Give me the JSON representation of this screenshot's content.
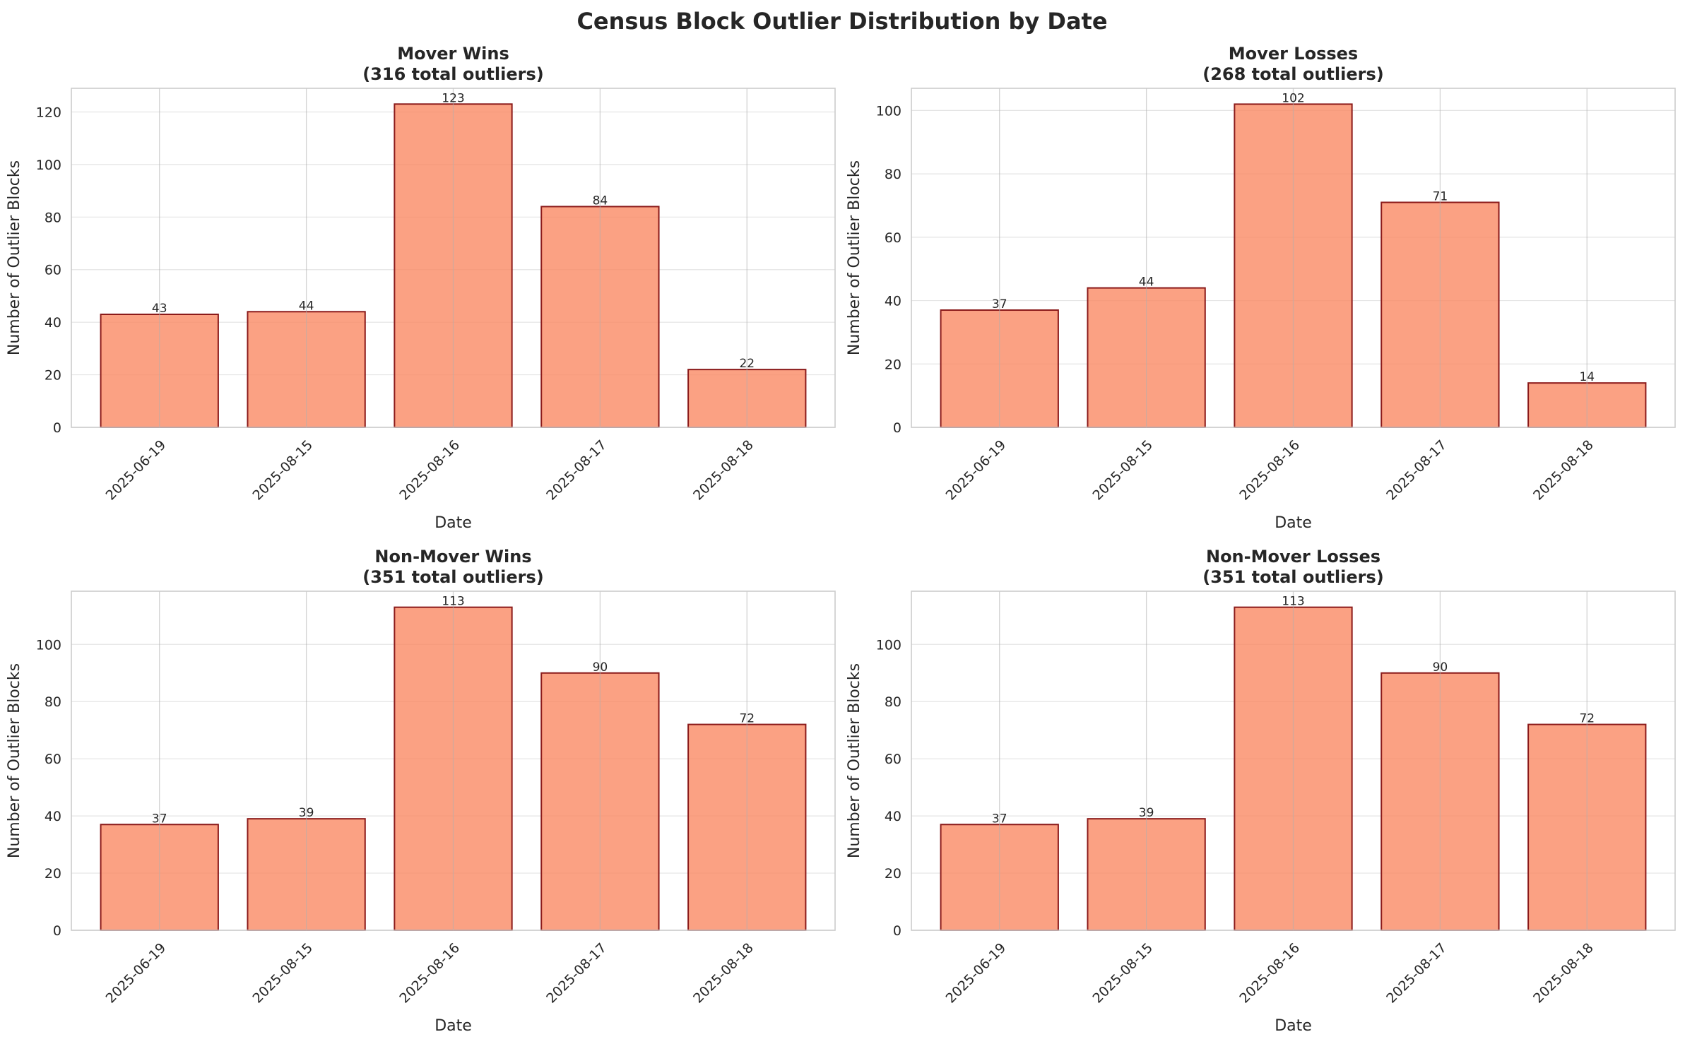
{
  "figure": {
    "suptitle": "Census Block Outlier Distribution by Date",
    "bar_color": "#fa8a64",
    "bar_edge_color": "#8b1a1a",
    "grid_color": "#d9d9d9"
  },
  "chart_data": [
    {
      "type": "bar",
      "title": "Mover Wins",
      "subtitle": "(316 total outliers)",
      "xlabel": "Date",
      "ylabel": "Number of Outlier Blocks",
      "categories": [
        "2025-06-19",
        "2025-08-15",
        "2025-08-16",
        "2025-08-17",
        "2025-08-18"
      ],
      "values": [
        43,
        44,
        123,
        84,
        22
      ],
      "ylim": [
        0,
        129
      ],
      "yticks": [
        0,
        20,
        40,
        60,
        80,
        100,
        120
      ],
      "grid": true
    },
    {
      "type": "bar",
      "title": "Mover Losses",
      "subtitle": "(268 total outliers)",
      "xlabel": "Date",
      "ylabel": "Number of Outlier Blocks",
      "categories": [
        "2025-06-19",
        "2025-08-15",
        "2025-08-16",
        "2025-08-17",
        "2025-08-18"
      ],
      "values": [
        37,
        44,
        102,
        71,
        14
      ],
      "ylim": [
        0,
        107
      ],
      "yticks": [
        0,
        20,
        40,
        60,
        80,
        100
      ],
      "grid": true
    },
    {
      "type": "bar",
      "title": "Non-Mover Wins",
      "subtitle": "(351 total outliers)",
      "xlabel": "Date",
      "ylabel": "Number of Outlier Blocks",
      "categories": [
        "2025-06-19",
        "2025-08-15",
        "2025-08-16",
        "2025-08-17",
        "2025-08-18"
      ],
      "values": [
        37,
        39,
        113,
        90,
        72
      ],
      "ylim": [
        0,
        118.6
      ],
      "yticks": [
        0,
        20,
        40,
        60,
        80,
        100
      ],
      "grid": true
    },
    {
      "type": "bar",
      "title": "Non-Mover Losses",
      "subtitle": "(351 total outliers)",
      "xlabel": "Date",
      "ylabel": "Number of Outlier Blocks",
      "categories": [
        "2025-06-19",
        "2025-08-15",
        "2025-08-16",
        "2025-08-17",
        "2025-08-18"
      ],
      "values": [
        37,
        39,
        113,
        90,
        72
      ],
      "ylim": [
        0,
        118.6
      ],
      "yticks": [
        0,
        20,
        40,
        60,
        80,
        100
      ],
      "grid": true
    }
  ]
}
